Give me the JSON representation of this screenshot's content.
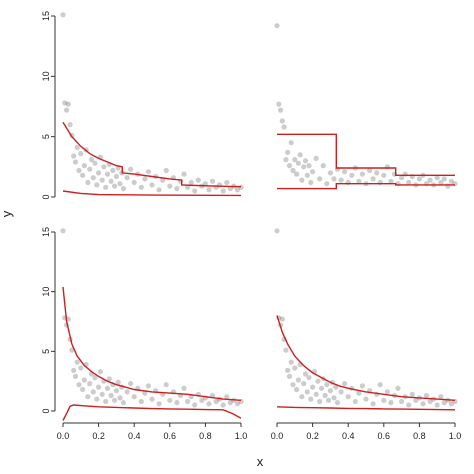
{
  "figure": {
    "xlabel": "x",
    "ylabel": "y"
  },
  "colors": {
    "points": "#555555",
    "curves": "#cc1f1f",
    "axis": "#333333"
  },
  "chart_data": [
    {
      "type": "scatter",
      "panel": "top-left",
      "xlim": [
        0,
        1
      ],
      "ylim": [
        0,
        15
      ],
      "y_ticks": [
        0,
        5,
        10,
        15
      ],
      "x_ticks": [],
      "show_x_axis": false,
      "show_y_axis": true,
      "points": [
        [
          0.0,
          15.1
        ],
        [
          0.01,
          7.8
        ],
        [
          0.02,
          7.2
        ],
        [
          0.03,
          7.7
        ],
        [
          0.04,
          6.0
        ],
        [
          0.05,
          5.1
        ],
        [
          0.06,
          3.4
        ],
        [
          0.07,
          2.9
        ],
        [
          0.08,
          4.1
        ],
        [
          0.09,
          2.2
        ],
        [
          0.1,
          3.6
        ],
        [
          0.11,
          1.8
        ],
        [
          0.12,
          2.6
        ],
        [
          0.13,
          3.9
        ],
        [
          0.14,
          1.2
        ],
        [
          0.15,
          2.3
        ],
        [
          0.16,
          3.1
        ],
        [
          0.17,
          1.6
        ],
        [
          0.18,
          2.8
        ],
        [
          0.19,
          1.0
        ],
        [
          0.2,
          2.0
        ],
        [
          0.21,
          3.3
        ],
        [
          0.22,
          1.4
        ],
        [
          0.23,
          2.5
        ],
        [
          0.24,
          0.8
        ],
        [
          0.25,
          1.9
        ],
        [
          0.26,
          2.7
        ],
        [
          0.27,
          1.3
        ],
        [
          0.28,
          2.2
        ],
        [
          0.29,
          0.9
        ],
        [
          0.3,
          1.7
        ],
        [
          0.31,
          2.4
        ],
        [
          0.32,
          1.1
        ],
        [
          0.33,
          2.0
        ],
        [
          0.34,
          0.7
        ],
        [
          0.36,
          1.6
        ],
        [
          0.38,
          2.3
        ],
        [
          0.4,
          1.2
        ],
        [
          0.42,
          1.9
        ],
        [
          0.44,
          0.8
        ],
        [
          0.46,
          1.5
        ],
        [
          0.48,
          2.1
        ],
        [
          0.5,
          1.0
        ],
        [
          0.52,
          1.7
        ],
        [
          0.54,
          0.6
        ],
        [
          0.56,
          1.4
        ],
        [
          0.58,
          2.2
        ],
        [
          0.6,
          0.9
        ],
        [
          0.62,
          1.6
        ],
        [
          0.64,
          0.7
        ],
        [
          0.66,
          1.3
        ],
        [
          0.68,
          1.9
        ],
        [
          0.7,
          0.8
        ],
        [
          0.72,
          1.2
        ],
        [
          0.74,
          0.5
        ],
        [
          0.76,
          1.4
        ],
        [
          0.78,
          0.9
        ],
        [
          0.8,
          1.1
        ],
        [
          0.82,
          0.6
        ],
        [
          0.84,
          1.3
        ],
        [
          0.86,
          0.8
        ],
        [
          0.88,
          1.0
        ],
        [
          0.9,
          0.5
        ],
        [
          0.92,
          1.2
        ],
        [
          0.94,
          0.7
        ],
        [
          0.96,
          0.9
        ],
        [
          0.98,
          0.6
        ],
        [
          1.0,
          0.8
        ]
      ],
      "lines": [
        {
          "name": "",
          "x": [
            0.0,
            0.05,
            0.1,
            0.15,
            0.2,
            0.25,
            0.3,
            0.333,
            0.333,
            0.4,
            0.5,
            0.6,
            0.667,
            0.667,
            0.75,
            0.85,
            1.0
          ],
          "y": [
            6.2,
            5.0,
            4.2,
            3.6,
            3.2,
            2.9,
            2.6,
            2.5,
            2.0,
            1.9,
            1.7,
            1.5,
            1.4,
            1.0,
            0.95,
            0.9,
            0.85
          ]
        },
        {
          "name": "",
          "x": [
            0.0,
            0.1,
            0.2,
            0.333,
            0.5,
            0.667,
            0.8,
            1.0
          ],
          "y": [
            0.5,
            0.3,
            0.2,
            0.18,
            0.16,
            0.15,
            0.14,
            0.13
          ]
        }
      ]
    },
    {
      "type": "scatter",
      "panel": "top-right",
      "xlim": [
        0,
        1
      ],
      "ylim": [
        0,
        15
      ],
      "y_ticks": [],
      "x_ticks": [],
      "show_x_axis": false,
      "show_y_axis": false,
      "points": [
        [
          0.0,
          14.2
        ],
        [
          0.01,
          7.7
        ],
        [
          0.02,
          7.2
        ],
        [
          0.03,
          6.3
        ],
        [
          0.04,
          5.8
        ],
        [
          0.05,
          3.1
        ],
        [
          0.06,
          3.7
        ],
        [
          0.07,
          2.6
        ],
        [
          0.08,
          4.5
        ],
        [
          0.09,
          2.2
        ],
        [
          0.1,
          3.1
        ],
        [
          0.11,
          1.9
        ],
        [
          0.12,
          2.8
        ],
        [
          0.13,
          3.5
        ],
        [
          0.14,
          1.4
        ],
        [
          0.15,
          2.5
        ],
        [
          0.16,
          3.0
        ],
        [
          0.17,
          1.8
        ],
        [
          0.18,
          2.6
        ],
        [
          0.19,
          1.2
        ],
        [
          0.2,
          2.1
        ],
        [
          0.22,
          3.2
        ],
        [
          0.24,
          1.5
        ],
        [
          0.26,
          2.6
        ],
        [
          0.28,
          1.1
        ],
        [
          0.3,
          2.0
        ],
        [
          0.32,
          1.5
        ],
        [
          0.34,
          2.3
        ],
        [
          0.36,
          1.4
        ],
        [
          0.38,
          2.1
        ],
        [
          0.4,
          1.2
        ],
        [
          0.42,
          1.8
        ],
        [
          0.44,
          2.4
        ],
        [
          0.46,
          1.3
        ],
        [
          0.48,
          1.9
        ],
        [
          0.5,
          1.1
        ],
        [
          0.52,
          2.2
        ],
        [
          0.54,
          1.5
        ],
        [
          0.56,
          2.0
        ],
        [
          0.58,
          1.2
        ],
        [
          0.6,
          1.8
        ],
        [
          0.62,
          2.5
        ],
        [
          0.64,
          1.3
        ],
        [
          0.66,
          1.9
        ],
        [
          0.68,
          1.1
        ],
        [
          0.7,
          1.6
        ],
        [
          0.72,
          1.9
        ],
        [
          0.74,
          1.2
        ],
        [
          0.76,
          1.7
        ],
        [
          0.78,
          1.0
        ],
        [
          0.8,
          1.5
        ],
        [
          0.82,
          1.8
        ],
        [
          0.84,
          1.1
        ],
        [
          0.86,
          1.4
        ],
        [
          0.88,
          1.0
        ],
        [
          0.9,
          1.6
        ],
        [
          0.92,
          1.2
        ],
        [
          0.94,
          1.5
        ],
        [
          0.96,
          0.9
        ],
        [
          0.98,
          1.3
        ],
        [
          1.0,
          1.1
        ]
      ],
      "lines": [
        {
          "name": "",
          "x": [
            0.0,
            0.333,
            0.333,
            0.667,
            0.667,
            1.0
          ],
          "y": [
            5.2,
            5.2,
            2.4,
            2.4,
            1.8,
            1.8
          ]
        },
        {
          "name": "",
          "x": [
            0.0,
            0.333,
            0.333,
            0.667,
            0.667,
            1.0
          ],
          "y": [
            0.7,
            0.7,
            1.1,
            1.1,
            1.0,
            1.0
          ]
        }
      ]
    },
    {
      "type": "scatter",
      "panel": "bottom-left",
      "xlim": [
        0,
        1
      ],
      "ylim": [
        0,
        15
      ],
      "y_ticks": [
        0,
        5,
        10,
        15
      ],
      "x_ticks": [
        0.0,
        0.2,
        0.4,
        0.6,
        0.8,
        1.0
      ],
      "show_x_axis": true,
      "show_y_axis": true,
      "points": [
        [
          0.0,
          15.1
        ],
        [
          0.01,
          7.8
        ],
        [
          0.02,
          7.2
        ],
        [
          0.03,
          7.7
        ],
        [
          0.04,
          6.0
        ],
        [
          0.05,
          5.1
        ],
        [
          0.06,
          3.4
        ],
        [
          0.07,
          2.9
        ],
        [
          0.08,
          4.1
        ],
        [
          0.09,
          2.2
        ],
        [
          0.1,
          3.6
        ],
        [
          0.11,
          1.8
        ],
        [
          0.12,
          2.6
        ],
        [
          0.13,
          3.9
        ],
        [
          0.14,
          1.2
        ],
        [
          0.15,
          2.3
        ],
        [
          0.16,
          3.1
        ],
        [
          0.17,
          1.6
        ],
        [
          0.18,
          2.8
        ],
        [
          0.19,
          1.0
        ],
        [
          0.2,
          2.0
        ],
        [
          0.21,
          3.3
        ],
        [
          0.22,
          1.4
        ],
        [
          0.23,
          2.5
        ],
        [
          0.24,
          0.8
        ],
        [
          0.25,
          1.9
        ],
        [
          0.26,
          2.7
        ],
        [
          0.27,
          1.3
        ],
        [
          0.28,
          2.2
        ],
        [
          0.29,
          0.9
        ],
        [
          0.3,
          1.7
        ],
        [
          0.31,
          2.4
        ],
        [
          0.32,
          1.1
        ],
        [
          0.33,
          2.0
        ],
        [
          0.34,
          0.7
        ],
        [
          0.36,
          1.6
        ],
        [
          0.38,
          2.3
        ],
        [
          0.4,
          1.2
        ],
        [
          0.42,
          1.9
        ],
        [
          0.44,
          0.8
        ],
        [
          0.46,
          1.5
        ],
        [
          0.48,
          2.1
        ],
        [
          0.5,
          1.0
        ],
        [
          0.52,
          1.7
        ],
        [
          0.54,
          0.6
        ],
        [
          0.56,
          1.4
        ],
        [
          0.58,
          2.2
        ],
        [
          0.6,
          0.9
        ],
        [
          0.62,
          1.6
        ],
        [
          0.64,
          0.7
        ],
        [
          0.66,
          1.3
        ],
        [
          0.68,
          1.9
        ],
        [
          0.7,
          0.8
        ],
        [
          0.72,
          1.2
        ],
        [
          0.74,
          0.5
        ],
        [
          0.76,
          1.4
        ],
        [
          0.78,
          0.9
        ],
        [
          0.8,
          1.1
        ],
        [
          0.82,
          0.6
        ],
        [
          0.84,
          1.3
        ],
        [
          0.86,
          0.8
        ],
        [
          0.88,
          1.0
        ],
        [
          0.9,
          0.5
        ],
        [
          0.92,
          1.2
        ],
        [
          0.94,
          0.7
        ],
        [
          0.96,
          0.9
        ],
        [
          0.98,
          0.6
        ],
        [
          1.0,
          0.8
        ]
      ],
      "lines": [
        {
          "name": "",
          "x": [
            0.0,
            0.02,
            0.05,
            0.08,
            0.12,
            0.16,
            0.2,
            0.25,
            0.3,
            0.35,
            0.4,
            0.5,
            0.6,
            0.7,
            0.8,
            0.9,
            1.0
          ],
          "y": [
            10.4,
            7.5,
            5.6,
            4.6,
            3.8,
            3.3,
            2.9,
            2.5,
            2.2,
            2.0,
            1.8,
            1.6,
            1.5,
            1.4,
            1.2,
            1.0,
            0.9
          ]
        },
        {
          "name": "",
          "x": [
            0.0,
            0.02,
            0.04,
            0.06,
            0.1,
            0.2,
            0.3,
            0.4,
            0.5,
            0.6,
            0.7,
            0.8,
            0.9,
            0.95,
            1.0
          ],
          "y": [
            -0.8,
            -0.2,
            0.4,
            0.5,
            0.45,
            0.35,
            0.3,
            0.25,
            0.2,
            0.18,
            0.15,
            0.12,
            0.1,
            -0.2,
            -0.6
          ]
        }
      ]
    },
    {
      "type": "scatter",
      "panel": "bottom-right",
      "xlim": [
        0,
        1
      ],
      "ylim": [
        0,
        15
      ],
      "y_ticks": [],
      "x_ticks": [
        0.0,
        0.2,
        0.4,
        0.6,
        0.8,
        1.0
      ],
      "show_x_axis": true,
      "show_y_axis": false,
      "points": [
        [
          0.0,
          15.1
        ],
        [
          0.01,
          7.8
        ],
        [
          0.02,
          7.2
        ],
        [
          0.03,
          7.7
        ],
        [
          0.04,
          6.0
        ],
        [
          0.05,
          5.1
        ],
        [
          0.06,
          3.4
        ],
        [
          0.07,
          2.9
        ],
        [
          0.08,
          4.1
        ],
        [
          0.09,
          2.2
        ],
        [
          0.1,
          3.6
        ],
        [
          0.11,
          1.8
        ],
        [
          0.12,
          2.6
        ],
        [
          0.13,
          3.9
        ],
        [
          0.14,
          1.2
        ],
        [
          0.15,
          2.3
        ],
        [
          0.16,
          3.1
        ],
        [
          0.17,
          1.6
        ],
        [
          0.18,
          2.8
        ],
        [
          0.19,
          1.0
        ],
        [
          0.2,
          2.0
        ],
        [
          0.21,
          3.3
        ],
        [
          0.22,
          1.4
        ],
        [
          0.23,
          2.5
        ],
        [
          0.24,
          0.8
        ],
        [
          0.25,
          1.9
        ],
        [
          0.26,
          2.7
        ],
        [
          0.27,
          1.3
        ],
        [
          0.28,
          2.2
        ],
        [
          0.29,
          0.9
        ],
        [
          0.3,
          1.7
        ],
        [
          0.31,
          2.4
        ],
        [
          0.32,
          1.1
        ],
        [
          0.33,
          2.0
        ],
        [
          0.34,
          0.7
        ],
        [
          0.36,
          1.6
        ],
        [
          0.38,
          2.3
        ],
        [
          0.4,
          1.2
        ],
        [
          0.42,
          1.9
        ],
        [
          0.44,
          0.8
        ],
        [
          0.46,
          1.5
        ],
        [
          0.48,
          2.1
        ],
        [
          0.5,
          1.0
        ],
        [
          0.52,
          1.7
        ],
        [
          0.54,
          0.6
        ],
        [
          0.56,
          1.4
        ],
        [
          0.58,
          2.2
        ],
        [
          0.6,
          0.9
        ],
        [
          0.62,
          1.6
        ],
        [
          0.64,
          0.7
        ],
        [
          0.66,
          1.3
        ],
        [
          0.68,
          1.9
        ],
        [
          0.7,
          0.8
        ],
        [
          0.72,
          1.2
        ],
        [
          0.74,
          0.5
        ],
        [
          0.76,
          1.4
        ],
        [
          0.78,
          0.9
        ],
        [
          0.8,
          1.1
        ],
        [
          0.82,
          0.6
        ],
        [
          0.84,
          1.3
        ],
        [
          0.86,
          0.8
        ],
        [
          0.88,
          1.0
        ],
        [
          0.9,
          0.5
        ],
        [
          0.92,
          1.2
        ],
        [
          0.94,
          0.7
        ],
        [
          0.96,
          0.9
        ],
        [
          0.98,
          0.6
        ],
        [
          1.0,
          0.8
        ]
      ],
      "lines": [
        {
          "name": "",
          "x": [
            0.0,
            0.03,
            0.06,
            0.1,
            0.15,
            0.2,
            0.25,
            0.3,
            0.35,
            0.4,
            0.5,
            0.6,
            0.7,
            0.8,
            0.9,
            1.0
          ],
          "y": [
            8.0,
            6.6,
            5.6,
            4.6,
            3.8,
            3.2,
            2.8,
            2.4,
            2.1,
            1.9,
            1.6,
            1.4,
            1.2,
            1.1,
            1.0,
            0.9
          ]
        },
        {
          "name": "",
          "x": [
            0.0,
            0.1,
            0.2,
            0.3,
            0.4,
            0.5,
            0.6,
            0.7,
            0.8,
            0.9,
            1.0
          ],
          "y": [
            0.35,
            0.3,
            0.28,
            0.25,
            0.22,
            0.2,
            0.18,
            0.16,
            0.14,
            0.12,
            0.1
          ]
        }
      ]
    }
  ]
}
